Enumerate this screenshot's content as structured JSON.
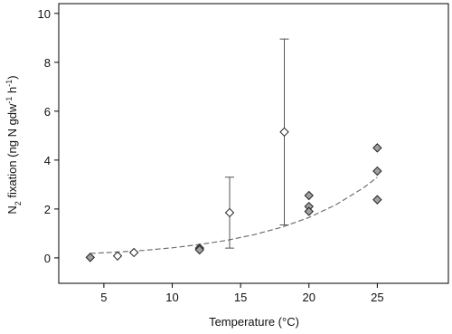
{
  "chart_data": {
    "type": "scatter",
    "x_label": "Temperature (°C)",
    "y_label_parts": [
      "N",
      "2",
      " fixation (ng N gdw",
      "-1",
      " h",
      "-1",
      ")"
    ],
    "xlim": [
      1.7,
      30.2
    ],
    "ylim": [
      -1.04,
      10.4
    ],
    "xticks": [
      5,
      10,
      15,
      20,
      25
    ],
    "yticks": [
      0,
      2,
      4,
      6,
      8,
      10
    ],
    "series": [
      {
        "color": "#a0a0a0",
        "x": [
          4,
          12,
          12,
          20,
          20,
          20,
          25,
          25,
          25
        ],
        "values": [
          0.02,
          0.4,
          0.33,
          2.55,
          2.1,
          1.9,
          4.5,
          3.55,
          2.38
        ]
      },
      {
        "color": "#ffffff",
        "x": [
          6,
          7.2,
          14.2,
          18.2
        ],
        "values": [
          0.08,
          0.22,
          1.85,
          5.15
        ],
        "errors": [
          null,
          null,
          1.45,
          3.8
        ]
      }
    ],
    "fit": {
      "color": "#707070",
      "x": [
        4,
        6,
        8,
        10,
        12,
        14,
        16,
        18,
        20,
        22,
        24,
        25
      ],
      "y": [
        0.18,
        0.238,
        0.31,
        0.41,
        0.55,
        0.72,
        0.95,
        1.25,
        1.65,
        2.18,
        2.87,
        3.3
      ]
    }
  }
}
